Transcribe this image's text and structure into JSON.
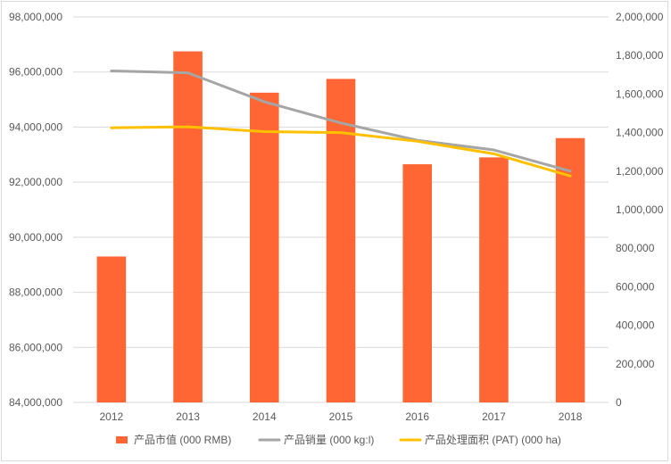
{
  "chart_data": {
    "type": "bar",
    "categories": [
      "2012",
      "2013",
      "2014",
      "2015",
      "2016",
      "2017",
      "2018"
    ],
    "series": [
      {
        "name": "产品市值 (000 RMB)",
        "kind": "bar",
        "axis": "left",
        "color": "#ff6633",
        "values": [
          89300000,
          96750000,
          95250000,
          95750000,
          92650000,
          92900000,
          93600000
        ]
      },
      {
        "name": "产品销量 (000 kg:l)",
        "kind": "line",
        "axis": "right",
        "color": "#a5a5a5",
        "values": [
          1720000,
          1710000,
          1560000,
          1450000,
          1360000,
          1310000,
          1200000
        ]
      },
      {
        "name": "产品处理面积 (PAT) (000 ha)",
        "kind": "line",
        "axis": "right",
        "color": "#ffc000",
        "values": [
          1425000,
          1430000,
          1405000,
          1400000,
          1355000,
          1290000,
          1175000
        ]
      }
    ],
    "left_axis": {
      "ylim": [
        84000000,
        98000000
      ],
      "ticks": [
        84000000,
        86000000,
        88000000,
        90000000,
        92000000,
        94000000,
        96000000,
        98000000
      ],
      "tick_labels": [
        "84,000,000",
        "86,000,000",
        "88,000,000",
        "90,000,000",
        "92,000,000",
        "94,000,000",
        "96,000,000",
        "98,000,000"
      ]
    },
    "right_axis": {
      "ylim": [
        0,
        2000000
      ],
      "ticks": [
        0,
        200000,
        400000,
        600000,
        800000,
        1000000,
        1200000,
        1400000,
        1600000,
        1800000,
        2000000
      ],
      "tick_labels": [
        "0",
        "200,000",
        "400,000",
        "600,000",
        "800,000",
        "1,000,000",
        "1,200,000",
        "1,400,000",
        "1,600,000",
        "1,800,000",
        "2,000,000"
      ]
    },
    "grid": true,
    "legend_position": "bottom",
    "title": "",
    "xlabel": "",
    "ylabel": ""
  }
}
